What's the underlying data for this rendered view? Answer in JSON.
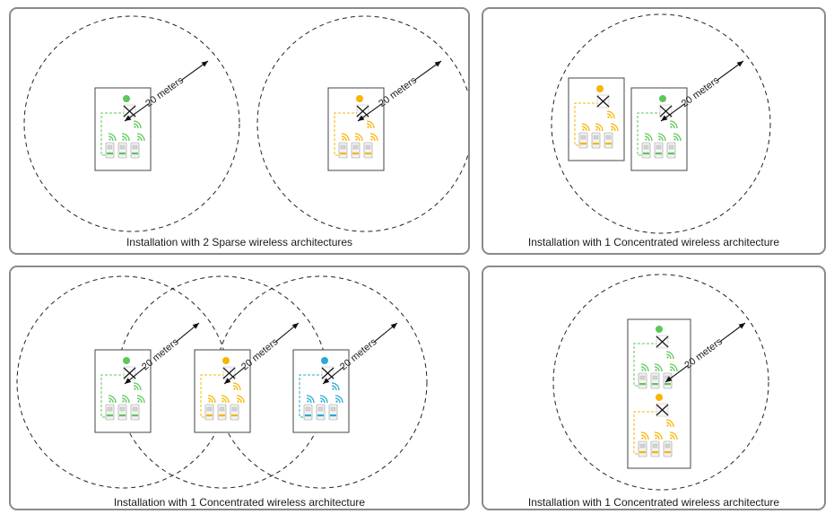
{
  "colors": {
    "green": "#5cc85a",
    "orange": "#f7b500",
    "blue": "#29a9d6",
    "circle_line": "#222222",
    "panel_border": "#8a8a8a"
  },
  "distance_label": "20 meters",
  "panels": [
    {
      "id": "two-sparse",
      "caption": "Installation with 2 Sparse wireless architectures",
      "gateways": [
        {
          "number": "1",
          "color": "green"
        },
        {
          "number": "2",
          "color": "orange"
        }
      ]
    },
    {
      "id": "one-concentrated-a",
      "caption": "Installation with 1 Concentrated wireless architecture",
      "gateways": [
        {
          "number": "2",
          "color": "orange"
        },
        {
          "number": "1",
          "color": "green"
        }
      ]
    },
    {
      "id": "one-concentrated-b",
      "caption": "Installation with 1 Concentrated wireless architecture",
      "gateways": [
        {
          "number": "1",
          "color": "green"
        },
        {
          "number": "2",
          "color": "orange"
        },
        {
          "number": "3",
          "color": "blue"
        }
      ]
    },
    {
      "id": "one-concentrated-c",
      "caption": "Installation with 1 Concentrated wireless architecture",
      "gateways": [
        {
          "number": "1",
          "color": "green"
        },
        {
          "number": "2",
          "color": "orange"
        }
      ]
    }
  ]
}
